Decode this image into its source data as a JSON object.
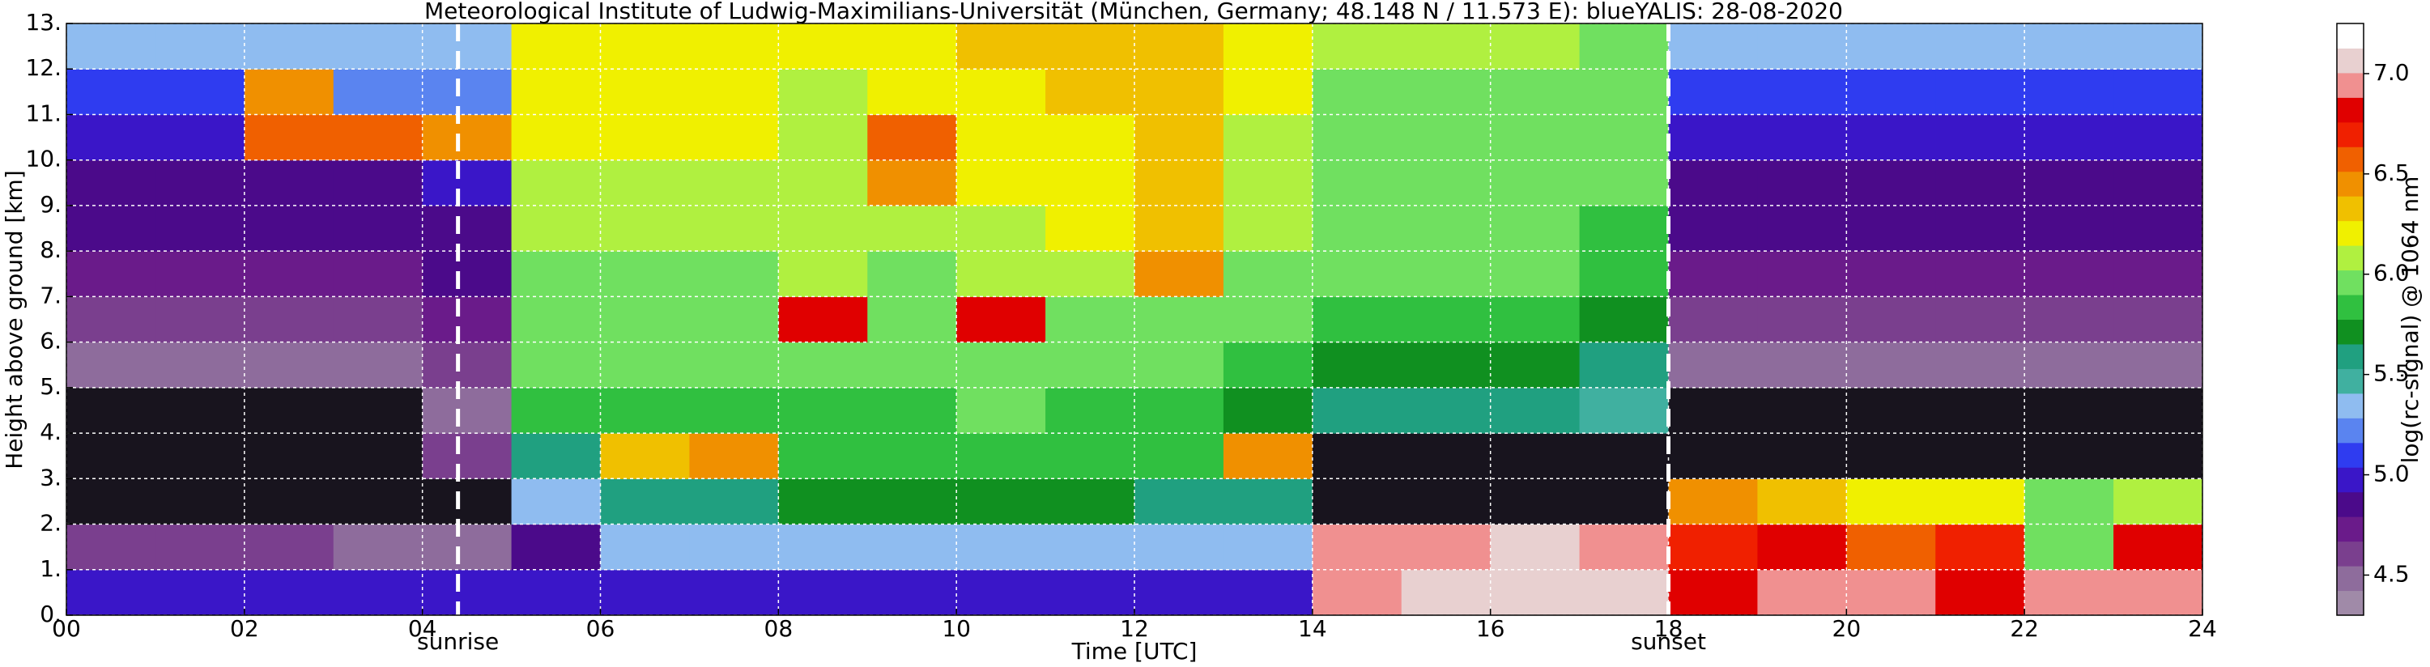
{
  "chart_data": {
    "type": "heatmap",
    "title": "Meteorological Institute of Ludwig-Maximilians-Universität (München, Germany; 48.148 N / 11.573 E):    blueYALIS: 28-08-2020",
    "x_label": "Time [UTC]",
    "y_label": "Height above ground [km]",
    "colorbar_label": "log(rc-signal) @ 1064 nm",
    "xlim": [
      0,
      24
    ],
    "ylim": [
      0,
      13
    ],
    "xticks": [
      {
        "value": 0,
        "label": "00"
      },
      {
        "value": 2,
        "label": "02"
      },
      {
        "value": 4,
        "label": "04"
      },
      {
        "value": 6,
        "label": "06"
      },
      {
        "value": 8,
        "label": "08"
      },
      10,
      12,
      14,
      16,
      18,
      20,
      22,
      24
    ],
    "yticks": [
      {
        "value": 0,
        "label": "0."
      },
      {
        "value": 1,
        "label": "1."
      },
      {
        "value": 2,
        "label": "2."
      },
      {
        "value": 3,
        "label": "3."
      },
      {
        "value": 4,
        "label": "4."
      },
      {
        "value": 5,
        "label": "5."
      },
      {
        "value": 6,
        "label": "6."
      },
      {
        "value": 7,
        "label": "7."
      },
      {
        "value": 8,
        "label": "8."
      },
      {
        "value": 9,
        "label": "9."
      },
      {
        "value": 10,
        "label": "10."
      },
      {
        "value": 11,
        "label": "11."
      },
      {
        "value": 12,
        "label": "12."
      },
      {
        "value": 13,
        "label": "13."
      }
    ],
    "clim": [
      4.3,
      7.25
    ],
    "cticks": [
      4.5,
      {
        "value": 5.0,
        "label": "5.0"
      },
      5.5,
      {
        "value": 6.0,
        "label": "6.0"
      },
      6.5,
      {
        "value": 7.0,
        "label": "7.0"
      }
    ],
    "colors": [
      "#a08aa8",
      "#8e6c9c",
      "#7a3f8e",
      "#6a1b8a",
      "#4b0a8a",
      "#3a16c8",
      "#2f3cf0",
      "#5a84f0",
      "#8fbcf0",
      "#40b0a0",
      "#20a080",
      "#109020",
      "#30c040",
      "#70e060",
      "#b0f040",
      "#f0f000",
      "#f0c000",
      "#f09000",
      "#f06000",
      "#f02000",
      "#e00000",
      "#f09090",
      "#e8d0d0",
      "#ffffff"
    ],
    "under_color": "#18141e",
    "grid": true,
    "z": [
      [
        5.0,
        5.0,
        5.0,
        5.0,
        5.0,
        5.0,
        5.0,
        5.0,
        5.0,
        5.0,
        5.0,
        5.0,
        5.0,
        5.0,
        6.9,
        7.1,
        7.1,
        7.1,
        6.8,
        6.9,
        6.9,
        6.8,
        6.9,
        7.0
      ],
      [
        4.6,
        4.6,
        4.6,
        4.5,
        4.5,
        4.9,
        5.3,
        5.3,
        5.4,
        5.4,
        5.4,
        5.4,
        5.3,
        5.3,
        7.0,
        7.0,
        7.1,
        7.0,
        6.7,
        6.8,
        6.6,
        6.7,
        5.9,
        6.8
      ],
      [
        4.0,
        4.0,
        4.0,
        4.0,
        4.0,
        5.4,
        5.6,
        5.6,
        5.7,
        5.7,
        5.7,
        5.7,
        5.6,
        5.6,
        4.0,
        4.0,
        4.0,
        4.0,
        6.5,
        6.3,
        6.2,
        6.2,
        6.0,
        6.1
      ],
      [
        4.0,
        4.0,
        4.0,
        4.0,
        4.6,
        5.6,
        6.3,
        6.5,
        5.8,
        5.8,
        5.8,
        5.8,
        5.8,
        6.5,
        4.0,
        4.0,
        4.0,
        4.0,
        4.0,
        4.0,
        4.0,
        4.0,
        4.0,
        4.0
      ],
      [
        4.0,
        4.0,
        4.0,
        4.0,
        4.5,
        5.8,
        5.8,
        5.8,
        5.8,
        5.8,
        5.9,
        5.8,
        5.8,
        5.7,
        5.6,
        5.6,
        5.6,
        5.5,
        4.0,
        4.0,
        4.0,
        4.0,
        4.0,
        4.0
      ],
      [
        4.5,
        4.5,
        4.5,
        4.5,
        4.6,
        5.9,
        5.9,
        5.9,
        5.9,
        5.9,
        6.0,
        6.0,
        5.9,
        5.8,
        5.7,
        5.7,
        5.7,
        5.6,
        4.5,
        4.5,
        4.5,
        4.5,
        4.5,
        4.5
      ],
      [
        4.6,
        4.6,
        4.6,
        4.6,
        4.7,
        6.0,
        6.0,
        6.0,
        6.8,
        6.0,
        6.8,
        6.0,
        6.0,
        5.9,
        5.8,
        5.8,
        5.8,
        5.7,
        4.6,
        4.6,
        4.6,
        4.6,
        4.6,
        4.6
      ],
      [
        4.7,
        4.7,
        4.7,
        4.7,
        4.8,
        6.0,
        6.0,
        6.0,
        6.1,
        6.0,
        6.1,
        6.1,
        6.4,
        6.0,
        5.9,
        5.9,
        5.9,
        5.8,
        4.7,
        4.7,
        4.7,
        4.7,
        4.7,
        4.7
      ],
      [
        4.8,
        4.8,
        4.8,
        4.8,
        4.9,
        6.1,
        6.1,
        6.1,
        6.1,
        6.1,
        6.1,
        6.2,
        6.3,
        6.1,
        6.0,
        6.0,
        5.9,
        5.8,
        4.8,
        4.8,
        4.8,
        4.8,
        4.8,
        4.8
      ],
      [
        4.9,
        4.9,
        4.9,
        4.9,
        5.0,
        6.1,
        6.1,
        6.1,
        6.1,
        6.5,
        6.2,
        6.2,
        6.3,
        6.1,
        6.0,
        6.0,
        6.0,
        5.9,
        4.9,
        4.9,
        4.9,
        4.9,
        4.9,
        4.9
      ],
      [
        5.0,
        5.0,
        6.6,
        6.6,
        6.5,
        6.2,
        6.2,
        6.2,
        6.1,
        6.6,
        6.2,
        6.2,
        6.3,
        6.1,
        6.0,
        6.0,
        6.0,
        5.9,
        5.0,
        5.0,
        5.0,
        5.0,
        5.0,
        5.0
      ],
      [
        5.1,
        5.1,
        6.4,
        5.2,
        5.2,
        6.2,
        6.2,
        6.2,
        6.1,
        6.2,
        6.2,
        6.3,
        6.3,
        6.2,
        6.0,
        6.0,
        6.0,
        5.9,
        5.1,
        5.1,
        5.1,
        5.1,
        5.1,
        5.1
      ],
      [
        5.3,
        5.3,
        5.3,
        5.3,
        5.4,
        6.2,
        6.2,
        6.2,
        6.2,
        6.2,
        6.3,
        6.3,
        6.3,
        6.2,
        6.1,
        6.1,
        6.1,
        6.0,
        5.3,
        5.3,
        5.3,
        5.3,
        5.3,
        5.3
      ]
    ],
    "annotations": [
      {
        "x": 4.4,
        "label": "sunrise"
      },
      {
        "x": 18.0,
        "label": "sunset"
      }
    ]
  }
}
